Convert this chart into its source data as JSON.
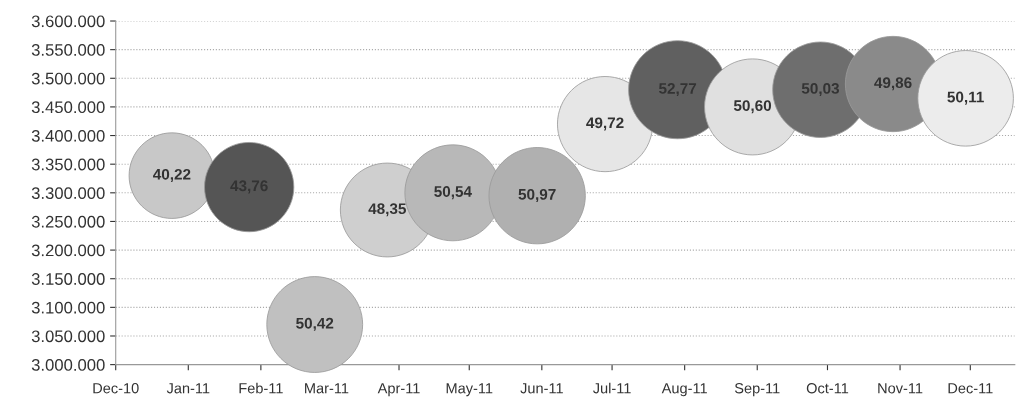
{
  "chart_data": {
    "type": "bubble",
    "x": [
      "2010-12-25",
      "2011-01-27",
      "2011-02-24",
      "2011-03-27",
      "2011-04-24",
      "2011-05-30",
      "2011-06-28",
      "2011-07-29",
      "2011-08-30",
      "2011-09-28",
      "2011-10-29",
      "2011-11-29"
    ],
    "values": [
      3330000,
      3310000,
      3070000,
      3270000,
      3300000,
      3295000,
      3420000,
      3480000,
      3450000,
      3480000,
      3490000,
      3465000
    ],
    "sizes": [
      40.22,
      43.76,
      50.42,
      48.35,
      50.54,
      50.97,
      49.72,
      52.77,
      50.6,
      50.03,
      49.86,
      50.11
    ],
    "value_labels": [
      "40,22",
      "43,76",
      "50,42",
      "48,35",
      "50,54",
      "50,97",
      "49,72",
      "52,77",
      "50,60",
      "50,03",
      "49,86",
      "50,11"
    ],
    "colors": [
      "#c8c8c8",
      "#555555",
      "#c0c0c0",
      "#cfcfcf",
      "#b8b8b8",
      "#b0b0b0",
      "#e6e6e6",
      "#606060",
      "#e0e0e0",
      "#6e6e6e",
      "#8a8a8a",
      "#ececec"
    ],
    "xlim": [
      "2010-12-01",
      "2011-12-20"
    ],
    "xticks": [
      {
        "value": "2010-12-01",
        "label": "Dec-10"
      },
      {
        "value": "2011-01-01",
        "label": "Jan-11"
      },
      {
        "value": "2011-02-01",
        "label": "Feb-11"
      },
      {
        "value": "2011-03-01",
        "label": "Mar-11"
      },
      {
        "value": "2011-04-01",
        "label": "Apr-11"
      },
      {
        "value": "2011-05-01",
        "label": "May-11"
      },
      {
        "value": "2011-06-01",
        "label": "Jun-11"
      },
      {
        "value": "2011-07-01",
        "label": "Jul-11"
      },
      {
        "value": "2011-08-01",
        "label": "Aug-11"
      },
      {
        "value": "2011-09-01",
        "label": "Sep-11"
      },
      {
        "value": "2011-10-01",
        "label": "Oct-11"
      },
      {
        "value": "2011-11-01",
        "label": "Nov-11"
      },
      {
        "value": "2011-12-01",
        "label": "Dec-11"
      }
    ],
    "ylim": [
      3000000,
      3600000
    ],
    "yticks": [
      {
        "value": 3000000,
        "label": "3.000.000"
      },
      {
        "value": 3050000,
        "label": "3.050.000"
      },
      {
        "value": 3100000,
        "label": "3.100.000"
      },
      {
        "value": 3150000,
        "label": "3.150.000"
      },
      {
        "value": 3200000,
        "label": "3.200.000"
      },
      {
        "value": 3250000,
        "label": "3.250.000"
      },
      {
        "value": 3300000,
        "label": "3.300.000"
      },
      {
        "value": 3350000,
        "label": "3.350.000"
      },
      {
        "value": 3400000,
        "label": "3.400.000"
      },
      {
        "value": 3450000,
        "label": "3.450.000"
      },
      {
        "value": 3500000,
        "label": "3.500.000"
      },
      {
        "value": 3550000,
        "label": "3.550.000"
      },
      {
        "value": 3600000,
        "label": "3.600.000"
      }
    ],
    "grid": "y"
  }
}
